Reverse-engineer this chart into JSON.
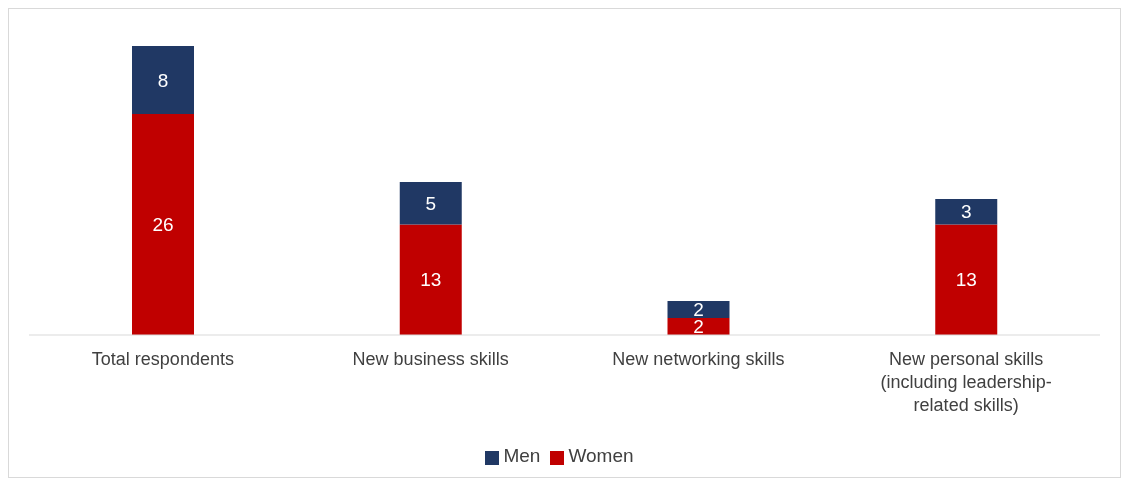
{
  "chart_data": {
    "type": "bar",
    "stacked": true,
    "data_labels": true,
    "legend": "bottom",
    "grid": false,
    "categories": [
      "Total respondents",
      "New business skills",
      "New networking skills",
      "New personal skills (including leadership-related skills)"
    ],
    "series": [
      {
        "name": "Women",
        "color": "#c00000",
        "values": [
          26,
          13,
          2,
          13
        ]
      },
      {
        "name": "Men",
        "color": "#203864",
        "values": [
          8,
          5,
          2,
          3
        ]
      }
    ]
  }
}
